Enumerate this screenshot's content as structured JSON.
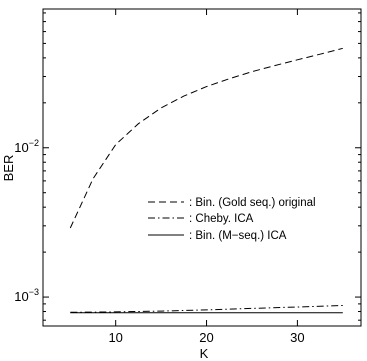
{
  "chart_data": {
    "type": "line",
    "title": "",
    "xlabel": "K",
    "ylabel": "BER",
    "xlim": [
      2,
      37
    ],
    "ylim": [
      0.00064,
      0.085
    ],
    "yscale": "log",
    "grid": false,
    "legend_position": "center-right",
    "x_ticks": [
      {
        "value": 10,
        "label": "10"
      },
      {
        "value": 20,
        "label": "20"
      },
      {
        "value": 30,
        "label": "30"
      }
    ],
    "y_ticks": [
      {
        "value": 0.001,
        "base": "10",
        "exp": "−3"
      },
      {
        "value": 0.01,
        "base": "10",
        "exp": "−2"
      }
    ],
    "series": [
      {
        "name": ": Bin. (Gold seq.) original",
        "style": "dashed",
        "x": [
          5,
          7.5,
          10,
          12.5,
          15,
          17.5,
          20,
          22.5,
          25,
          27.5,
          30,
          32.5,
          35
        ],
        "y": [
          0.0029,
          0.0062,
          0.0105,
          0.0145,
          0.0185,
          0.0222,
          0.0257,
          0.029,
          0.0323,
          0.0355,
          0.0388,
          0.0423,
          0.0464
        ]
      },
      {
        "name": ": Cheby. ICA",
        "style": "dashdot",
        "x": [
          5,
          10,
          15,
          20,
          25,
          30,
          35
        ],
        "y": [
          0.00079,
          0.000795,
          0.000805,
          0.00082,
          0.00084,
          0.000858,
          0.000878
        ]
      },
      {
        "name": ": Bin. (M−seq.) ICA",
        "style": "solid",
        "x": [
          5,
          10,
          15,
          20,
          25,
          30,
          35
        ],
        "y": [
          0.000785,
          0.000785,
          0.000785,
          0.000785,
          0.000785,
          0.000785,
          0.000785
        ]
      }
    ]
  }
}
